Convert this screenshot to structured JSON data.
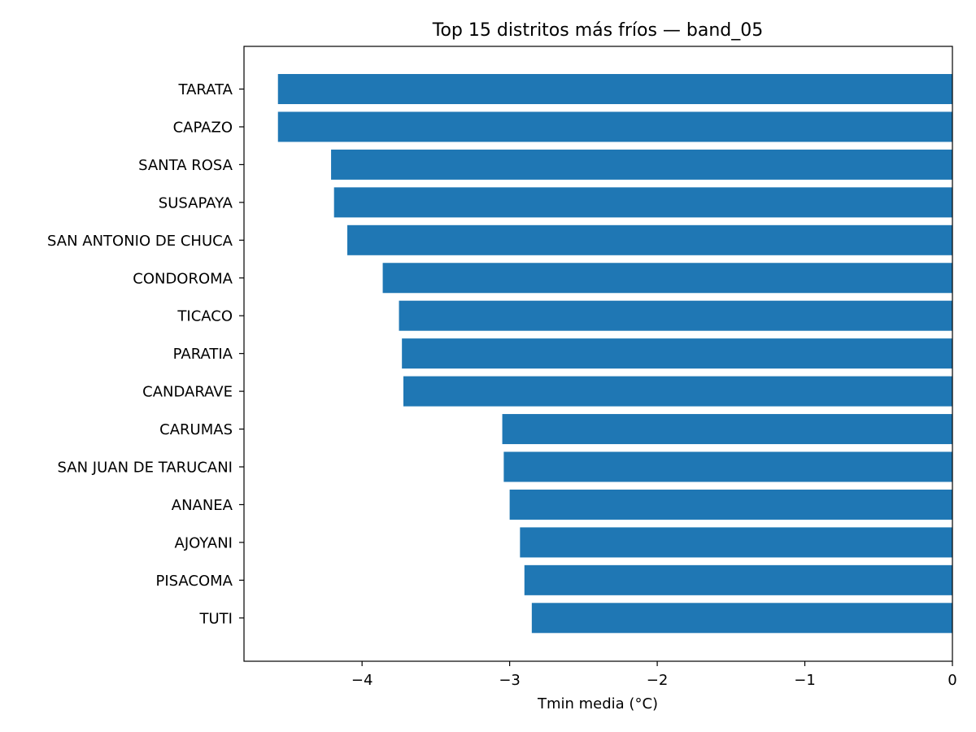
{
  "chart_data": {
    "type": "bar",
    "orientation": "horizontal",
    "title": "Top 15 distritos más fríos — band_05",
    "xlabel": "Tmin media (°C)",
    "ylabel": "",
    "xlim": [
      -4.8,
      0
    ],
    "xticks": [
      -4,
      -3,
      -2,
      -1,
      0
    ],
    "xtick_labels": [
      "−4",
      "−3",
      "−2",
      "−1",
      "0"
    ],
    "bar_color": "#1f77b4",
    "grid": false,
    "categories": [
      "TARATA",
      "CAPAZO",
      "SANTA ROSA",
      "SUSAPAYA",
      "SAN ANTONIO DE CHUCA",
      "CONDOROMA",
      "TICACO",
      "PARATIA",
      "CANDARAVE",
      "CARUMAS",
      "SAN JUAN DE TARUCANI",
      "ANANEA",
      "AJOYANI",
      "PISACOMA",
      "TUTI"
    ],
    "values": [
      -4.57,
      -4.57,
      -4.21,
      -4.19,
      -4.1,
      -3.86,
      -3.75,
      -3.73,
      -3.72,
      -3.05,
      -3.04,
      -3.0,
      -2.93,
      -2.9,
      -2.85
    ]
  }
}
